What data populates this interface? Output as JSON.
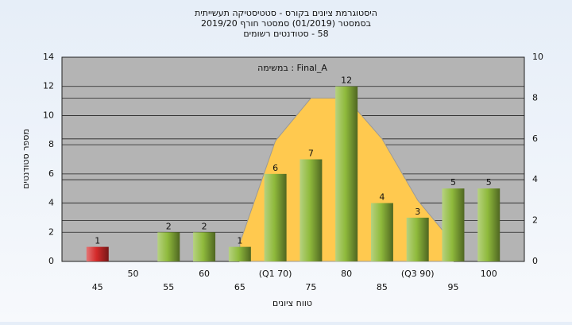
{
  "chart_data": {
    "type": "bar",
    "title_lines": [
      "היסטוגרמת ציונים בקורס - סטטיסטיקה תעשייתית",
      "בסמסטר (01/2019)  סמסטר חורף 2019/20",
      "58 - סטודנטים רשומים"
    ],
    "annotation": "Final_A : במשימה",
    "x_label": "טווח ציונים",
    "y_label": "מספר סטודנטים",
    "categories": [
      "45",
      "50",
      "55",
      "60",
      "65",
      "(Q1 70)",
      "75",
      "80",
      "85",
      "(Q3 90)",
      "95",
      "100"
    ],
    "values": [
      1,
      null,
      2,
      2,
      1,
      6,
      7,
      12,
      4,
      3,
      5,
      5
    ],
    "colors": [
      "#d42a2a",
      "#8fba3c",
      "#8fba3c",
      "#8fba3c",
      "#8fba3c",
      "#8fba3c",
      "#8fba3c",
      "#8fba3c",
      "#8fba3c",
      "#8fba3c",
      "#8fba3c",
      "#8fba3c"
    ],
    "area": {
      "values": [
        null,
        null,
        null,
        null,
        0.9,
        5.9,
        8,
        8,
        6,
        3,
        0.9,
        null
      ],
      "color": "#ffc94f",
      "line_color": "#9a9a9a",
      "axis": "y2"
    },
    "ylim": [
      0,
      14
    ],
    "yticks": [
      0,
      2,
      4,
      6,
      8,
      10,
      12,
      14
    ],
    "y2lim": [
      0,
      10
    ],
    "y2ticks": [
      0,
      2,
      4,
      6,
      8,
      10
    ],
    "grid": true
  }
}
